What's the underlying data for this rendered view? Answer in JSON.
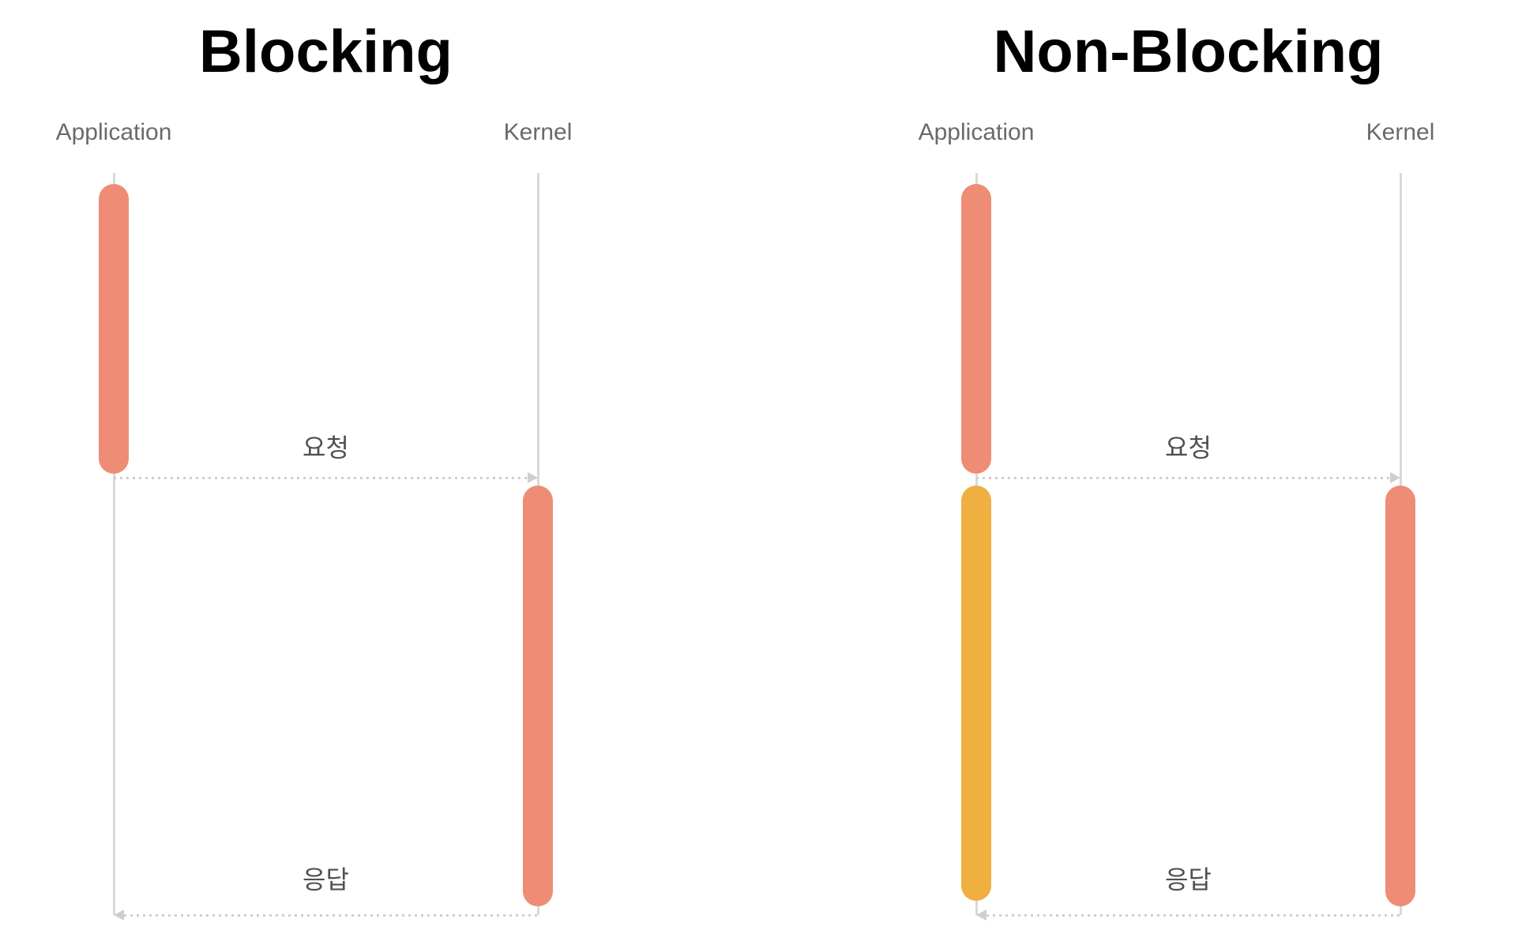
{
  "diagram": {
    "panels": [
      {
        "title": "Blocking",
        "actors": {
          "application": "Application",
          "kernel": "Kernel"
        },
        "messages": {
          "request": "요청",
          "response": "응답"
        }
      },
      {
        "title": "Non-Blocking",
        "actors": {
          "application": "Application",
          "kernel": "Kernel"
        },
        "messages": {
          "request": "요청",
          "response": "응답"
        }
      }
    ]
  },
  "colors": {
    "activation_primary": "#ef8c75",
    "activation_waiting": "#efb041",
    "lifeline": "#d9d9d9",
    "arrow": "#cfcfcf",
    "title_text": "#000000",
    "actor_text": "#6a6a6a",
    "message_text": "#4f4f4f",
    "background": "#ffffff"
  }
}
